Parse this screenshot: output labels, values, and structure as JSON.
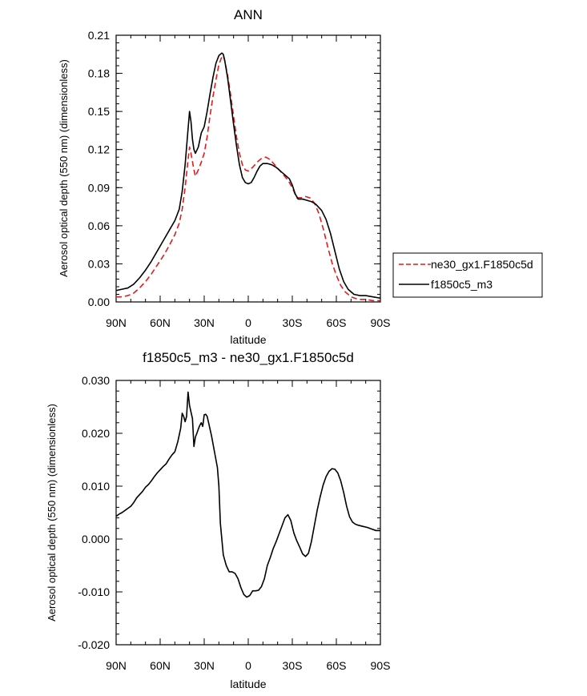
{
  "chart_data": [
    {
      "type": "line",
      "title": "ANN",
      "xlabel": "latitude",
      "ylabel": "Aerosol optical depth (550 nm) (dimensionless)",
      "xlim": [
        90,
        -90
      ],
      "ylim": [
        0,
        0.21
      ],
      "x_ticks": [
        {
          "v": 90,
          "label": "90N"
        },
        {
          "v": 60,
          "label": "60N"
        },
        {
          "v": 30,
          "label": "30N"
        },
        {
          "v": 0,
          "label": "0"
        },
        {
          "v": -30,
          "label": "30S"
        },
        {
          "v": -60,
          "label": "60S"
        },
        {
          "v": -90,
          "label": "90S"
        }
      ],
      "y_ticks": [
        {
          "v": 0,
          "label": "0.00"
        },
        {
          "v": 0.03,
          "label": "0.03"
        },
        {
          "v": 0.06,
          "label": "0.06"
        },
        {
          "v": 0.09,
          "label": "0.09"
        },
        {
          "v": 0.12,
          "label": "0.12"
        },
        {
          "v": 0.15,
          "label": "0.15"
        },
        {
          "v": 0.18,
          "label": "0.18"
        },
        {
          "v": 0.21,
          "label": "0.21"
        }
      ],
      "legend": "right",
      "series": [
        {
          "name": "ne30_gx1.F1850c5d",
          "color": "#e41a1c",
          "dash": "dashed",
          "points": [
            [
              90,
              0.004
            ],
            [
              86,
              0.004
            ],
            [
              82,
              0.005
            ],
            [
              78,
              0.007
            ],
            [
              74,
              0.011
            ],
            [
              70,
              0.016
            ],
            [
              66,
              0.022
            ],
            [
              62,
              0.029
            ],
            [
              58,
              0.036
            ],
            [
              54,
              0.044
            ],
            [
              50,
              0.053
            ],
            [
              47,
              0.062
            ],
            [
              45,
              0.073
            ],
            [
              43,
              0.09
            ],
            [
              41,
              0.112
            ],
            [
              40,
              0.122
            ],
            [
              39,
              0.117
            ],
            [
              37,
              0.104
            ],
            [
              36,
              0.099
            ],
            [
              34,
              0.104
            ],
            [
              32,
              0.11
            ],
            [
              30,
              0.117
            ],
            [
              28,
              0.13
            ],
            [
              26,
              0.147
            ],
            [
              24,
              0.162
            ],
            [
              22,
              0.175
            ],
            [
              20,
              0.187
            ],
            [
              18,
              0.193
            ],
            [
              17,
              0.194
            ],
            [
              16,
              0.19
            ],
            [
              14,
              0.178
            ],
            [
              12,
              0.163
            ],
            [
              10,
              0.146
            ],
            [
              8,
              0.13
            ],
            [
              6,
              0.117
            ],
            [
              4,
              0.108
            ],
            [
              2,
              0.104
            ],
            [
              0,
              0.103
            ],
            [
              -3,
              0.106
            ],
            [
              -6,
              0.11
            ],
            [
              -9,
              0.113
            ],
            [
              -12,
              0.114
            ],
            [
              -15,
              0.112
            ],
            [
              -18,
              0.108
            ],
            [
              -21,
              0.104
            ],
            [
              -24,
              0.1
            ],
            [
              -27,
              0.096
            ],
            [
              -30,
              0.09
            ],
            [
              -33,
              0.082
            ],
            [
              -36,
              0.082
            ],
            [
              -39,
              0.083
            ],
            [
              -42,
              0.082
            ],
            [
              -45,
              0.078
            ],
            [
              -48,
              0.07
            ],
            [
              -51,
              0.058
            ],
            [
              -54,
              0.044
            ],
            [
              -57,
              0.031
            ],
            [
              -60,
              0.021
            ],
            [
              -63,
              0.013
            ],
            [
              -66,
              0.008
            ],
            [
              -70,
              0.004
            ],
            [
              -75,
              0.002
            ],
            [
              -80,
              0.002
            ],
            [
              -85,
              0.001
            ],
            [
              -90,
              0.001
            ]
          ]
        },
        {
          "name": "f1850c5_m3",
          "color": "#000000",
          "dash": "solid",
          "points": [
            [
              90,
              0.009
            ],
            [
              86,
              0.01
            ],
            [
              82,
              0.011
            ],
            [
              78,
              0.014
            ],
            [
              74,
              0.019
            ],
            [
              70,
              0.025
            ],
            [
              66,
              0.032
            ],
            [
              62,
              0.04
            ],
            [
              58,
              0.048
            ],
            [
              54,
              0.056
            ],
            [
              50,
              0.064
            ],
            [
              47,
              0.073
            ],
            [
              45,
              0.087
            ],
            [
              43,
              0.108
            ],
            [
              41,
              0.136
            ],
            [
              40,
              0.15
            ],
            [
              39,
              0.142
            ],
            [
              38,
              0.128
            ],
            [
              37,
              0.12
            ],
            [
              36,
              0.117
            ],
            [
              34,
              0.122
            ],
            [
              32,
              0.133
            ],
            [
              30,
              0.138
            ],
            [
              28,
              0.15
            ],
            [
              26,
              0.164
            ],
            [
              24,
              0.177
            ],
            [
              22,
              0.188
            ],
            [
              20,
              0.194
            ],
            [
              18,
              0.196
            ],
            [
              17,
              0.195
            ],
            [
              16,
              0.19
            ],
            [
              14,
              0.176
            ],
            [
              12,
              0.158
            ],
            [
              10,
              0.14
            ],
            [
              8,
              0.123
            ],
            [
              6,
              0.108
            ],
            [
              4,
              0.098
            ],
            [
              2,
              0.094
            ],
            [
              0,
              0.093
            ],
            [
              -2,
              0.094
            ],
            [
              -4,
              0.098
            ],
            [
              -6,
              0.103
            ],
            [
              -8,
              0.107
            ],
            [
              -10,
              0.109
            ],
            [
              -13,
              0.109
            ],
            [
              -16,
              0.108
            ],
            [
              -19,
              0.106
            ],
            [
              -22,
              0.103
            ],
            [
              -25,
              0.1
            ],
            [
              -28,
              0.097
            ],
            [
              -30,
              0.092
            ],
            [
              -32,
              0.085
            ],
            [
              -34,
              0.081
            ],
            [
              -37,
              0.081
            ],
            [
              -40,
              0.08
            ],
            [
              -43,
              0.079
            ],
            [
              -46,
              0.077
            ],
            [
              -50,
              0.072
            ],
            [
              -53,
              0.065
            ],
            [
              -56,
              0.054
            ],
            [
              -59,
              0.04
            ],
            [
              -62,
              0.026
            ],
            [
              -65,
              0.016
            ],
            [
              -68,
              0.01
            ],
            [
              -72,
              0.006
            ],
            [
              -76,
              0.005
            ],
            [
              -80,
              0.005
            ],
            [
              -85,
              0.004
            ],
            [
              -90,
              0.003
            ]
          ]
        }
      ]
    },
    {
      "type": "line",
      "title": "f1850c5_m3 - ne30_gx1.F1850c5d",
      "xlabel": "latitude",
      "ylabel": "Aerosol optical depth (550 nm) (dimensionless)",
      "xlim": [
        90,
        -90
      ],
      "ylim": [
        -0.02,
        0.03
      ],
      "x_ticks": [
        {
          "v": 90,
          "label": "90N"
        },
        {
          "v": 60,
          "label": "60N"
        },
        {
          "v": 30,
          "label": "30N"
        },
        {
          "v": 0,
          "label": "0"
        },
        {
          "v": -30,
          "label": "30S"
        },
        {
          "v": -60,
          "label": "60S"
        },
        {
          "v": -90,
          "label": "90S"
        }
      ],
      "y_ticks": [
        {
          "v": -0.02,
          "label": "-0.020"
        },
        {
          "v": -0.01,
          "label": "-0.010"
        },
        {
          "v": 0,
          "label": "0.000"
        },
        {
          "v": 0.01,
          "label": "0.010"
        },
        {
          "v": 0.02,
          "label": "0.020"
        },
        {
          "v": 0.03,
          "label": "0.030"
        }
      ],
      "series": [
        {
          "name": "f1850c5_m3 - ne30_gx1.F1850c5d",
          "color": "#000000",
          "dash": "solid",
          "points": [
            [
              90,
              0.0043
            ],
            [
              88,
              0.0047
            ],
            [
              86,
              0.005
            ],
            [
              84,
              0.0054
            ],
            [
              82,
              0.0058
            ],
            [
              80,
              0.0062
            ],
            [
              78,
              0.0069
            ],
            [
              76,
              0.0078
            ],
            [
              74,
              0.0084
            ],
            [
              72,
              0.009
            ],
            [
              70,
              0.0098
            ],
            [
              68,
              0.0103
            ],
            [
              66,
              0.011
            ],
            [
              64,
              0.0118
            ],
            [
              62,
              0.0125
            ],
            [
              60,
              0.0131
            ],
            [
              58,
              0.0137
            ],
            [
              56,
              0.0142
            ],
            [
              54,
              0.0151
            ],
            [
              52,
              0.0159
            ],
            [
              50,
              0.0165
            ],
            [
              48,
              0.0184
            ],
            [
              46,
              0.021
            ],
            [
              45,
              0.0238
            ],
            [
              44,
              0.0232
            ],
            [
              43,
              0.0222
            ],
            [
              42,
              0.0232
            ],
            [
              41,
              0.0278
            ],
            [
              40,
              0.0253
            ],
            [
              39,
              0.024
            ],
            [
              38,
              0.0228
            ],
            [
              37,
              0.0175
            ],
            [
              36,
              0.0193
            ],
            [
              35,
              0.02
            ],
            [
              34,
              0.0208
            ],
            [
              33,
              0.0215
            ],
            [
              32,
              0.022
            ],
            [
              31,
              0.0213
            ],
            [
              30,
              0.0235
            ],
            [
              29,
              0.0236
            ],
            [
              28,
              0.0232
            ],
            [
              27,
              0.022
            ],
            [
              25,
              0.0195
            ],
            [
              23,
              0.0165
            ],
            [
              21,
              0.0135
            ],
            [
              20,
              0.01
            ],
            [
              19,
              0.003
            ],
            [
              18,
              0.0
            ],
            [
              17,
              -0.003
            ],
            [
              15,
              -0.005
            ],
            [
              13,
              -0.0062
            ],
            [
              11,
              -0.0062
            ],
            [
              9,
              -0.0065
            ],
            [
              7,
              -0.0075
            ],
            [
              5,
              -0.0092
            ],
            [
              3,
              -0.0105
            ],
            [
              1,
              -0.011
            ],
            [
              -1,
              -0.0107
            ],
            [
              -3,
              -0.0098
            ],
            [
              -5,
              -0.0098
            ],
            [
              -7,
              -0.0097
            ],
            [
              -9,
              -0.009
            ],
            [
              -11,
              -0.0075
            ],
            [
              -13,
              -0.005
            ],
            [
              -15,
              -0.0035
            ],
            [
              -17,
              -0.0018
            ],
            [
              -19,
              -0.0005
            ],
            [
              -21,
              0.001
            ],
            [
              -23,
              0.0025
            ],
            [
              -25,
              0.004
            ],
            [
              -27,
              0.0046
            ],
            [
              -29,
              0.0035
            ],
            [
              -31,
              0.0012
            ],
            [
              -33,
              -0.0003
            ],
            [
              -35,
              -0.0015
            ],
            [
              -37,
              -0.0028
            ],
            [
              -39,
              -0.0033
            ],
            [
              -41,
              -0.0027
            ],
            [
              -43,
              -0.0005
            ],
            [
              -45,
              0.0025
            ],
            [
              -47,
              0.0055
            ],
            [
              -49,
              0.008
            ],
            [
              -51,
              0.0102
            ],
            [
              -53,
              0.0118
            ],
            [
              -55,
              0.0128
            ],
            [
              -57,
              0.0133
            ],
            [
              -59,
              0.0132
            ],
            [
              -61,
              0.0125
            ],
            [
              -63,
              0.011
            ],
            [
              -65,
              0.0088
            ],
            [
              -67,
              0.0062
            ],
            [
              -69,
              0.0042
            ],
            [
              -71,
              0.0032
            ],
            [
              -73,
              0.0028
            ],
            [
              -75,
              0.0026
            ],
            [
              -78,
              0.0024
            ],
            [
              -81,
              0.0022
            ],
            [
              -84,
              0.0019
            ],
            [
              -87,
              0.0016
            ],
            [
              -90,
              0.0016
            ]
          ]
        }
      ]
    }
  ]
}
